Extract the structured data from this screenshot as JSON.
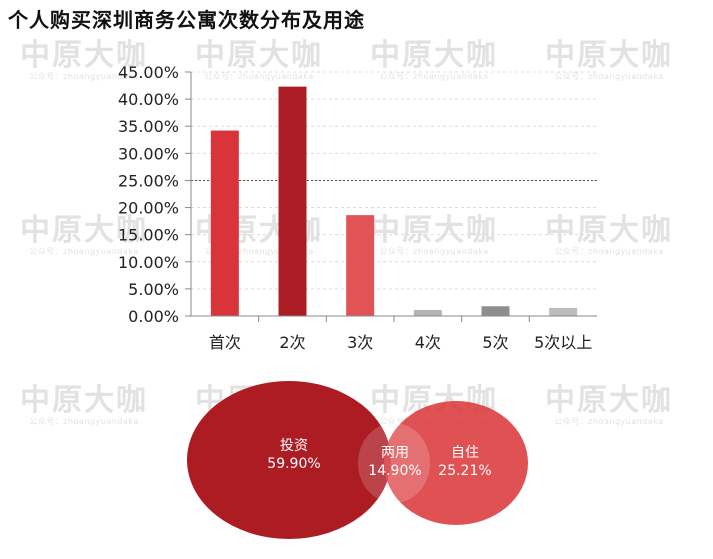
{
  "title": "个人购买深圳商务公寓次数分布及用途",
  "watermark": {
    "main": "中原大咖",
    "sub": "公众号：zhoangyuandaka"
  },
  "chart_data": [
    {
      "type": "bar",
      "categories": [
        "首次",
        "2次",
        "3次",
        "4次",
        "5次",
        "5次以上"
      ],
      "values": [
        0.342,
        0.423,
        0.186,
        0.011,
        0.018,
        0.015
      ],
      "colors": [
        "#d8343a",
        "#ac1c24",
        "#e05356",
        "#b5b5b5",
        "#8e8e8e",
        "#bcbcbc"
      ],
      "y_tick_labels": [
        "0.00%",
        "5.00%",
        "10.00%",
        "15.00%",
        "20.00%",
        "25.00%",
        "30.00%",
        "35.00%",
        "40.00%",
        "45.00%"
      ],
      "ylim": [
        0,
        0.45
      ],
      "reference_line": 0.25,
      "grid": true
    },
    {
      "type": "venn",
      "sets": [
        {
          "label": "投资",
          "value": "59.90%",
          "color": "#ad1c23"
        },
        {
          "label": "自住",
          "value": "25.21%",
          "color": "#da3336"
        }
      ],
      "overlap": {
        "label": "两用",
        "value": "14.90%"
      }
    }
  ]
}
